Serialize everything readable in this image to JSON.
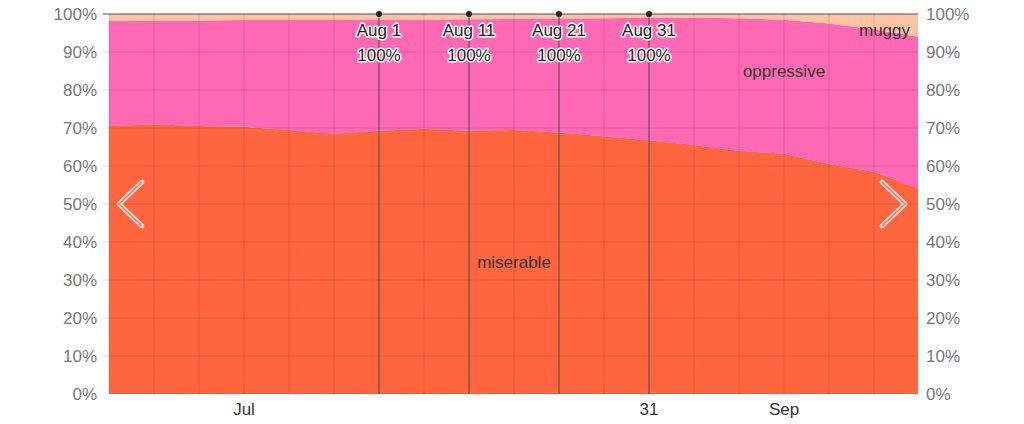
{
  "chart_data": {
    "type": "area",
    "stacked": true,
    "categories": [
      null,
      null,
      null,
      "Jul",
      null,
      null,
      null,
      null,
      null,
      null,
      null,
      null,
      "31",
      null,
      null,
      "Sep",
      null,
      null,
      null
    ],
    "series": [
      {
        "name": "miserable",
        "color": "#ff6640",
        "values": [
          70.5,
          71,
          70.5,
          70.3,
          69.5,
          68.5,
          69.3,
          69.8,
          69.3,
          69.5,
          68.8,
          67.8,
          66.8,
          65.5,
          64,
          63.2,
          60.5,
          58.5,
          54
        ]
      },
      {
        "name": "oppressive",
        "color": "#ff69b4",
        "values": [
          27.7,
          27.3,
          27.8,
          28.1,
          28.9,
          29.9,
          29.2,
          28.7,
          29.3,
          29.2,
          30.0,
          31.1,
          32.2,
          33.5,
          34.9,
          35.3,
          37.0,
          37.5,
          40.0
        ]
      },
      {
        "name": "muggy",
        "color": "#ffc4a3",
        "values": [
          1.8,
          1.7,
          1.7,
          1.6,
          1.6,
          1.6,
          1.5,
          1.5,
          1.4,
          1.3,
          1.2,
          1.1,
          1.0,
          1.0,
          1.1,
          1.5,
          2.5,
          4.0,
          6.0
        ]
      }
    ],
    "ylim": [
      0,
      100
    ],
    "yticks": [
      {
        "value": 0,
        "label": "0%"
      },
      {
        "value": 10,
        "label": "10%"
      },
      {
        "value": 20,
        "label": "20%"
      },
      {
        "value": 30,
        "label": "30%"
      },
      {
        "value": 40,
        "label": "40%"
      },
      {
        "value": 50,
        "label": "50%"
      },
      {
        "value": 60,
        "label": "60%"
      },
      {
        "value": 70,
        "label": "70%"
      },
      {
        "value": 80,
        "label": "80%"
      },
      {
        "value": 90,
        "label": "90%"
      },
      {
        "value": 100,
        "label": "100%"
      }
    ],
    "grid": true,
    "annotations": [
      {
        "index": 6,
        "text": "Aug 1",
        "value": 100,
        "value_label": "100%"
      },
      {
        "index": 8,
        "text": "Aug 11",
        "value": 100,
        "value_label": "100%"
      },
      {
        "index": 10,
        "text": "Aug 21",
        "value": 100,
        "value_label": "100%"
      },
      {
        "index": 12,
        "text": "Aug 31",
        "value": 100,
        "value_label": "100%"
      }
    ]
  }
}
